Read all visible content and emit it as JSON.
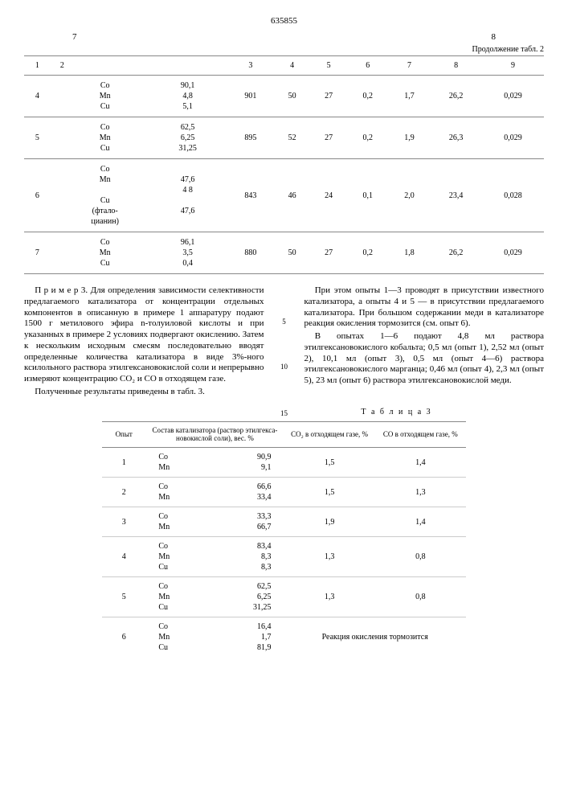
{
  "doc_number": "635855",
  "left_page": "7",
  "right_page": "8",
  "table2": {
    "continuation": "Продолжение табл. 2",
    "headers": [
      "1",
      "2",
      "",
      "3",
      "4",
      "5",
      "6",
      "7",
      "8",
      "9"
    ],
    "rows": [
      {
        "n": "4",
        "comp": "Co\nMn\nCu",
        "vals": "90,1\n4,8\n5,1",
        "c3": "901",
        "c4": "50",
        "c5": "27",
        "c6": "0,2",
        "c7": "1,7",
        "c8": "26,2",
        "c9": "0,029"
      },
      {
        "n": "5",
        "comp": "Co\nMn\nCu",
        "vals": "62,5\n6,25\n31,25",
        "c3": "895",
        "c4": "52",
        "c5": "27",
        "c6": "0,2",
        "c7": "1,9",
        "c8": "26,3",
        "c9": "0,029"
      },
      {
        "n": "6",
        "comp": "Co\nMn\n\nCu\n(фтало-\nцианин)",
        "vals": "47,6\n4 8\n\n47,6",
        "c3": "843",
        "c4": "46",
        "c5": "24",
        "c6": "0,1",
        "c7": "2,0",
        "c8": "23,4",
        "c9": "0,028"
      },
      {
        "n": "7",
        "comp": "Co\nMn\nCu",
        "vals": "96,1\n3,5\n0,4",
        "c3": "880",
        "c4": "50",
        "c5": "27",
        "c6": "0,2",
        "c7": "1,8",
        "c8": "26,2",
        "c9": "0,029"
      }
    ]
  },
  "body_left": {
    "p1": "П р и м е р  3. Для определения зависимости селективности предлагаемого катализатора от концентрации отдельных компонентов в описанную в примере 1 аппаратуру подают 1500 г метилового эфира n-толуиловой кислоты и при указанных в примере 2 условиях подвергают окислению. Затем к нескольким исходным смесям последовательно вводят определенные количества катализатора в виде 3%-ного ксилольного раствора этилгексановокислой соли и непрерывно измеряют концентрацию CO₂ и CO в отходящем газе.",
    "p2": "Полученные результаты приведены в табл. 3."
  },
  "markers": {
    "m5": "5",
    "m10": "10",
    "m15": "15"
  },
  "body_right": {
    "p1": "При этом опыты 1—3 проводят в присутствии известного катализатора, а опыты 4 и 5 — в присутствии предлагаемого катализатора. При большом содержании меди в катализаторе реакция окисления тормозится (см. опыт 6).",
    "p2": "В опытах 1—6 подают 4,8 мл раствора этилгексановокислого кобальта; 0,5 мл (опыт 1), 2,52 мл (опыт 2), 10,1 мл (опыт 3), 0,5 мл (опыт 4—6) раствора этилгексановокислого марганца; 0,46 мл (опыт 4), 2,3 мл (опыт 5), 23 мл (опыт 6) раствора этилгексановокислой меди."
  },
  "table3": {
    "label": "Т а б л и ц а  3",
    "headers": {
      "h1": "Опыт",
      "h2": "Состав катализатора (раствор этилгекса-новокислой соли), вес. %",
      "h3": "CO₂ в отходящем газе, %",
      "h4": "CO в отходящем газе, %"
    },
    "rows": [
      {
        "n": "1",
        "comp": "Co\nMn",
        "vals": "90,9\n9,1",
        "co2": "1,5",
        "co": "1,4"
      },
      {
        "n": "2",
        "comp": "Co\nMn",
        "vals": "66,6\n33,4",
        "co2": "1,5",
        "co": "1,3"
      },
      {
        "n": "3",
        "comp": "Co\nMn",
        "vals": "33,3\n66,7",
        "co2": "1,9",
        "co": "1,4"
      },
      {
        "n": "4",
        "comp": "Co\nMn\nCu",
        "vals": "83,4\n8,3\n8,3",
        "co2": "1,3",
        "co": "0,8"
      },
      {
        "n": "5",
        "comp": "Co\nMn\nCu",
        "vals": "62,5\n6,25\n31,25",
        "co2": "1,3",
        "co": "0,8"
      },
      {
        "n": "6",
        "comp": "Co\nMn\nCu",
        "vals": "16,4\n1,7\n81,9",
        "co2": "Реакция окисления тормозится",
        "co": ""
      }
    ]
  }
}
